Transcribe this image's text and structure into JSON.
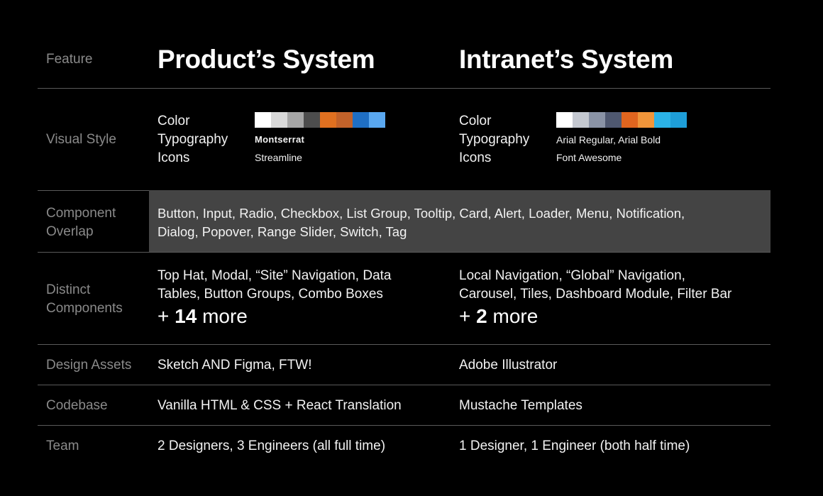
{
  "header": {
    "feature": "Feature",
    "product": "Product’s System",
    "intranet": "Intranet’s System"
  },
  "visual_style": {
    "label": "Visual Style",
    "product": {
      "color_label": "Color",
      "typography_label": "Typography",
      "icons_label": "Icons",
      "typography_value": "Montserrat",
      "icons_value": "Streamline",
      "palette": [
        "#ffffff",
        "#d9d9d9",
        "#a6a6a6",
        "#4d4d4d",
        "#e07020",
        "#c2622a",
        "#1f6fc4",
        "#5aa8f0"
      ]
    },
    "intranet": {
      "color_label": "Color",
      "typography_label": "Typography",
      "icons_label": "Icons",
      "typography_value": "Arial Regular, Arial Bold",
      "icons_value": "Font Awesome",
      "palette": [
        "#ffffff",
        "#c4c8d0",
        "#8a93a6",
        "#4f5870",
        "#e0651f",
        "#f0953a",
        "#2bb2e6",
        "#1e9ed8"
      ]
    }
  },
  "component_overlap": {
    "label_line1": "Component",
    "label_line2": "Overlap",
    "line1": "Button, Input, Radio, Checkbox, List Group, Tooltip, Card, Alert, Loader, Menu, Notification,",
    "line2": "Dialog, Popover, Range Slider, Switch, Tag"
  },
  "distinct_components": {
    "label_line1": "Distinct",
    "label_line2": "Components",
    "product_line1": "Top Hat, Modal, “Site” Navigation, Data",
    "product_line2": "Tables, Button Groups, Combo Boxes",
    "product_more_prefix": "+ ",
    "product_more_count": "14",
    "product_more_suffix": " more",
    "intranet_line1": "Local Navigation, “Global” Navigation,",
    "intranet_line2": "Carousel, Tiles, Dashboard Module, Filter Bar",
    "intranet_more_prefix": "+ ",
    "intranet_more_count": "2",
    "intranet_more_suffix": " more"
  },
  "design_assets": {
    "label": "Design Assets",
    "product": "Sketch AND Figma, FTW!",
    "intranet": "Adobe Illustrator"
  },
  "codebase": {
    "label": "Codebase",
    "product": "Vanilla HTML & CSS + React Translation",
    "intranet": "Mustache Templates"
  },
  "team": {
    "label": "Team",
    "product": "2 Designers, 3 Engineers (all full time)",
    "intranet": "1 Designer, 1 Engineer (both half time)"
  }
}
